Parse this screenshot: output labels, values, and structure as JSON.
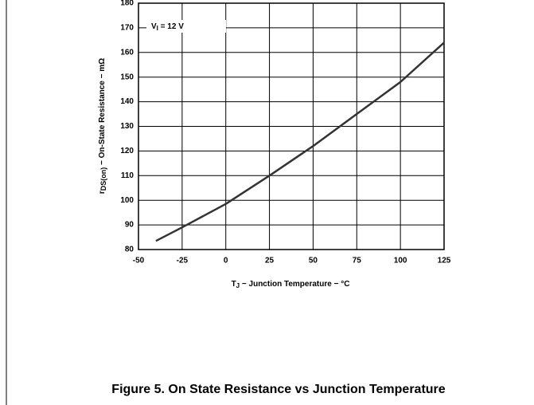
{
  "chart_data": {
    "type": "line",
    "title": "Figure 5. On State Resistance vs Junction Temperature",
    "x_label": {
      "main": "T",
      "sub": "J",
      "rest": " − Junction Temperature − °C"
    },
    "y_label": {
      "main": "r",
      "sub": "DS(on)",
      "rest": " − On-State Resistance − mΩ"
    },
    "annotation": {
      "main": "V",
      "sub": "I",
      "rest": " = 12 V"
    },
    "x": [
      -40,
      -25,
      0,
      25,
      50,
      75,
      100,
      125
    ],
    "series": [
      {
        "name": "rDS(on)",
        "color": "#333333",
        "values": [
          83.5,
          89,
          98.5,
          110,
          122,
          135,
          148,
          164
        ]
      }
    ],
    "xlim": [
      -50,
      125
    ],
    "xticks": [
      -50,
      -25,
      0,
      25,
      50,
      75,
      100,
      125
    ],
    "ylim": [
      80,
      180
    ],
    "yticks": [
      80,
      90,
      100,
      110,
      120,
      130,
      140,
      150,
      160,
      170,
      180
    ],
    "grid": true
  }
}
